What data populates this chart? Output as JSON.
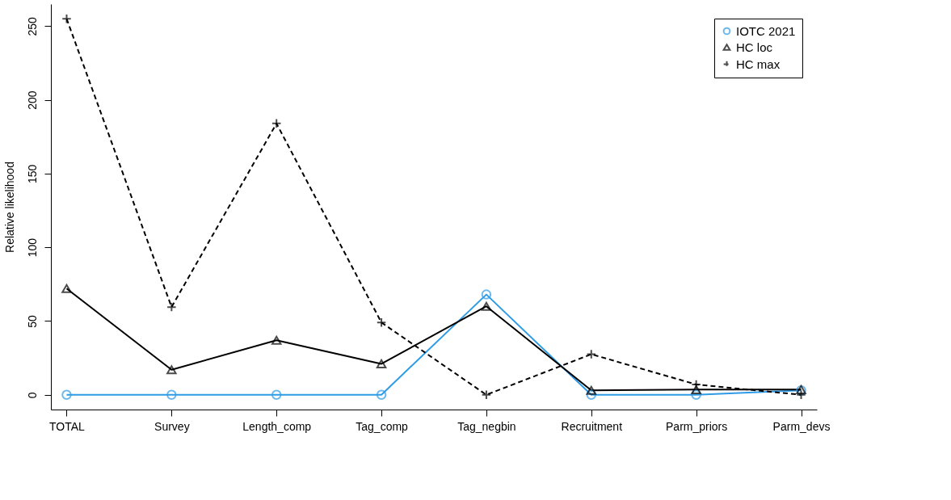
{
  "chart_data": {
    "type": "line",
    "ylabel": "Relative likelihood",
    "categories": [
      "TOTAL",
      "Survey",
      "Length_comp",
      "Tag_comp",
      "Tag_negbin",
      "Recruitment",
      "Parm_priors",
      "Parm_devs"
    ],
    "series": [
      {
        "name": "IOTC 2021",
        "color": "#2e9be6",
        "marker": "circle",
        "line_style": "solid",
        "values": [
          0,
          0,
          0,
          0,
          68,
          0,
          0,
          3
        ]
      },
      {
        "name": "HC loc",
        "color": "#000000",
        "marker": "triangle",
        "line_style": "solid",
        "values": [
          72,
          17,
          37,
          21,
          60,
          3,
          3.5,
          3.5
        ]
      },
      {
        "name": "HC max",
        "color": "#000000",
        "marker": "cross",
        "line_style": "dashed",
        "values": [
          255,
          59.5,
          184,
          49,
          0,
          27.5,
          7,
          0
        ]
      }
    ],
    "ylim": [
      -10,
      265
    ],
    "yticks": [
      0,
      50,
      100,
      150,
      200,
      250
    ],
    "grid": false,
    "legend": "top right"
  }
}
